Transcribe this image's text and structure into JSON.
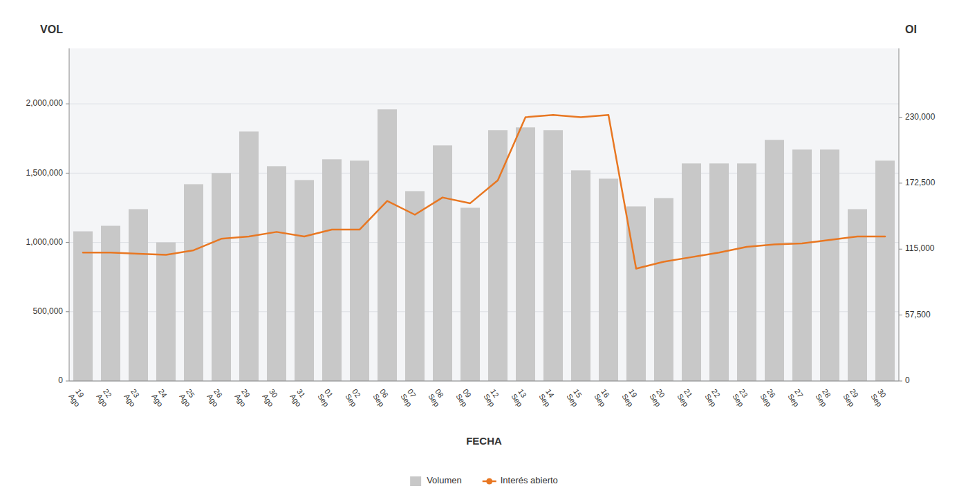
{
  "chart_data": {
    "type": "bar",
    "xlabel": "FECHA",
    "ylabel": "VOL",
    "y2label": "OI",
    "categories": [
      "19\nAgo",
      "22\nAgo",
      "23\nAgo",
      "24\nAgo",
      "25\nAgo",
      "26\nAgo",
      "29\nAgo",
      "30\nAgo",
      "31\nAgo",
      "01\nSep",
      "02\nSep",
      "06\nSep",
      "07\nSep",
      "08\nSep",
      "09\nSep",
      "12\nSep",
      "13\nSep",
      "14\nSep",
      "15\nSep",
      "16\nSep",
      "19\nSep",
      "20\nSep",
      "21\nSep",
      "22\nSep",
      "23\nSep",
      "26\nSep",
      "27\nSep",
      "28\nSep",
      "29\nSep",
      "30\nSep"
    ],
    "series": [
      {
        "name": "Volumen",
        "type": "bar",
        "color": "#c8c8c8",
        "values": [
          1080000,
          1120000,
          1240000,
          1000000,
          1420000,
          1500000,
          1800000,
          1550000,
          1450000,
          1600000,
          1590000,
          1960000,
          1370000,
          1700000,
          1250000,
          1810000,
          1830000,
          1810000,
          1520000,
          1460000,
          1260000,
          1320000,
          1570000,
          1570000,
          1570000,
          1740000,
          1670000,
          1670000,
          1240000,
          1590000
        ]
      },
      {
        "name": "Interés abierto",
        "type": "line",
        "axis": "y2",
        "color": "#e87722",
        "values": [
          112000,
          112000,
          111000,
          110000,
          114000,
          124000,
          126000,
          130000,
          126000,
          132000,
          132000,
          157000,
          145000,
          160000,
          155000,
          175000,
          230000,
          232000,
          230000,
          232000,
          98000,
          104000,
          108000,
          112000,
          117000,
          119000,
          120000,
          123000,
          126000,
          126000
        ]
      }
    ],
    "ylim": [
      0,
      2400000
    ],
    "yticks": [
      0,
      {
        "value": 500000,
        "label": "500,000"
      },
      {
        "value": 1000000,
        "label": "1,000,000"
      },
      {
        "value": 1500000,
        "label": "1,500,000"
      },
      {
        "value": 2000000,
        "label": "2,000,000"
      }
    ],
    "y2lim": [
      0,
      290000
    ],
    "y2ticks": [
      0,
      {
        "value": 57500,
        "label": "57,500"
      },
      {
        "value": 115000,
        "label": "115,000"
      },
      {
        "value": 172500,
        "label": "172,500"
      },
      {
        "value": 230000,
        "label": "230,000"
      }
    ],
    "grid": true,
    "legend": "bottom"
  }
}
